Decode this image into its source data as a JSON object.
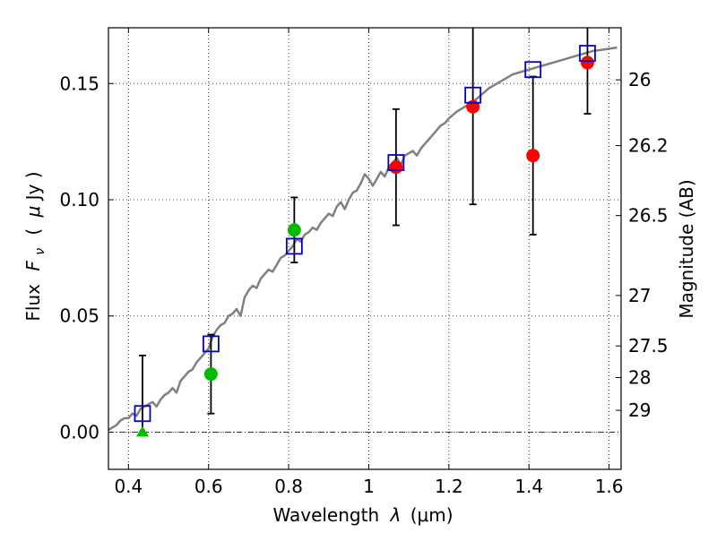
{
  "chart_data": {
    "type": "scatter",
    "xlabel": "Wavelength",
    "xlabel_symbol": "λ",
    "xlabel_unit": "(μm)",
    "ylabel": "Flux",
    "ylabel_symbol": "F",
    "ylabel_subscript": "ν",
    "ylabel_unit_open": "(",
    "ylabel_unit_mu": "μ",
    "ylabel_unit_rest": "Jy )",
    "y2label": "Magnitude (AB)",
    "xlim": [
      0.35,
      1.63
    ],
    "ylim": [
      -0.016,
      0.174
    ],
    "xticks": [
      {
        "value": 0.4,
        "label": "0.4"
      },
      {
        "value": 0.6,
        "label": "0.6"
      },
      {
        "value": 0.8,
        "label": "0.8"
      },
      {
        "value": 1.0,
        "label": "1"
      },
      {
        "value": 1.2,
        "label": "1.2"
      },
      {
        "value": 1.4,
        "label": "1.4"
      },
      {
        "value": 1.6,
        "label": "1.6"
      }
    ],
    "yticks": [
      {
        "value": 0.0,
        "label": "0.00"
      },
      {
        "value": 0.05,
        "label": "0.05"
      },
      {
        "value": 0.1,
        "label": "0.10"
      },
      {
        "value": 0.15,
        "label": "0.15"
      }
    ],
    "mag_ticks": [
      {
        "value": 0.1516,
        "label": "26"
      },
      {
        "value": 0.1233,
        "label": "26.2"
      },
      {
        "value": 0.0932,
        "label": "26.5"
      },
      {
        "value": 0.0588,
        "label": "27"
      },
      {
        "value": 0.0371,
        "label": "27.5"
      },
      {
        "value": 0.0235,
        "label": "28"
      },
      {
        "value": 0.0094,
        "label": "29"
      }
    ],
    "grid": true,
    "zero_line": true,
    "colors": {
      "model": "#808080",
      "model_photometry": "#0000cc",
      "detection_red": "#ff0000",
      "detection_green": "#00bb00",
      "errorbar": "#000000"
    },
    "series": [
      {
        "name": "model SED",
        "style": "line",
        "x": [
          0.35,
          0.36,
          0.37,
          0.38,
          0.39,
          0.4,
          0.41,
          0.42,
          0.43,
          0.44,
          0.45,
          0.46,
          0.47,
          0.48,
          0.49,
          0.5,
          0.51,
          0.52,
          0.53,
          0.54,
          0.55,
          0.56,
          0.57,
          0.58,
          0.59,
          0.6,
          0.61,
          0.62,
          0.63,
          0.64,
          0.65,
          0.66,
          0.67,
          0.68,
          0.69,
          0.7,
          0.71,
          0.72,
          0.73,
          0.74,
          0.75,
          0.76,
          0.77,
          0.78,
          0.79,
          0.8,
          0.81,
          0.82,
          0.83,
          0.84,
          0.85,
          0.86,
          0.87,
          0.88,
          0.89,
          0.9,
          0.91,
          0.92,
          0.93,
          0.94,
          0.95,
          0.96,
          0.97,
          0.98,
          0.99,
          1.0,
          1.01,
          1.02,
          1.03,
          1.04,
          1.05,
          1.06,
          1.07,
          1.08,
          1.09,
          1.1,
          1.11,
          1.12,
          1.13,
          1.14,
          1.15,
          1.16,
          1.17,
          1.18,
          1.19,
          1.2,
          1.22,
          1.24,
          1.26,
          1.28,
          1.3,
          1.32,
          1.34,
          1.36,
          1.38,
          1.4,
          1.42,
          1.44,
          1.46,
          1.48,
          1.5,
          1.52,
          1.54,
          1.56,
          1.58,
          1.6,
          1.62
        ],
        "y": [
          0.001,
          0.002,
          0.003,
          0.005,
          0.006,
          0.006,
          0.008,
          0.007,
          0.01,
          0.011,
          0.012,
          0.013,
          0.011,
          0.014,
          0.016,
          0.017,
          0.019,
          0.017,
          0.022,
          0.024,
          0.026,
          0.027,
          0.03,
          0.032,
          0.034,
          0.036,
          0.041,
          0.044,
          0.046,
          0.047,
          0.05,
          0.051,
          0.053,
          0.05,
          0.058,
          0.061,
          0.063,
          0.062,
          0.066,
          0.068,
          0.07,
          0.069,
          0.072,
          0.075,
          0.076,
          0.078,
          0.08,
          0.083,
          0.082,
          0.085,
          0.086,
          0.088,
          0.087,
          0.09,
          0.092,
          0.094,
          0.093,
          0.097,
          0.099,
          0.096,
          0.1,
          0.103,
          0.104,
          0.107,
          0.111,
          0.109,
          0.106,
          0.109,
          0.112,
          0.11,
          0.114,
          0.116,
          0.118,
          0.115,
          0.119,
          0.12,
          0.121,
          0.119,
          0.122,
          0.124,
          0.126,
          0.128,
          0.13,
          0.132,
          0.133,
          0.135,
          0.138,
          0.14,
          0.142,
          0.145,
          0.148,
          0.15,
          0.152,
          0.154,
          0.155,
          0.156,
          0.157,
          0.158,
          0.159,
          0.16,
          0.161,
          0.162,
          0.163,
          0.164,
          0.1645,
          0.165,
          0.1655
        ]
      },
      {
        "name": "model photometry",
        "style": "open-square",
        "x": [
          0.435,
          0.606,
          0.814,
          1.068,
          1.26,
          1.41,
          1.546
        ],
        "y": [
          0.008,
          0.038,
          0.08,
          0.116,
          0.145,
          0.156,
          0.163
        ]
      },
      {
        "name": "detections",
        "style": "filled-circle",
        "x": [
          0.606,
          0.814,
          1.068,
          1.26,
          1.41,
          1.546
        ],
        "y": [
          0.025,
          0.087,
          0.114,
          0.14,
          0.119,
          0.159
        ],
        "yerr_low": [
          0.017,
          0.014,
          0.025,
          0.042,
          0.034,
          0.022
        ],
        "yerr_high": [
          0.017,
          0.014,
          0.025,
          0.038,
          0.034,
          0.022
        ],
        "colors": [
          "green",
          "green",
          "red",
          "red",
          "red",
          "red"
        ]
      },
      {
        "name": "upper limit",
        "style": "triangle",
        "x": [
          0.435
        ],
        "y": [
          0.0
        ],
        "yerr_high": [
          0.033
        ],
        "color": "green"
      }
    ]
  }
}
